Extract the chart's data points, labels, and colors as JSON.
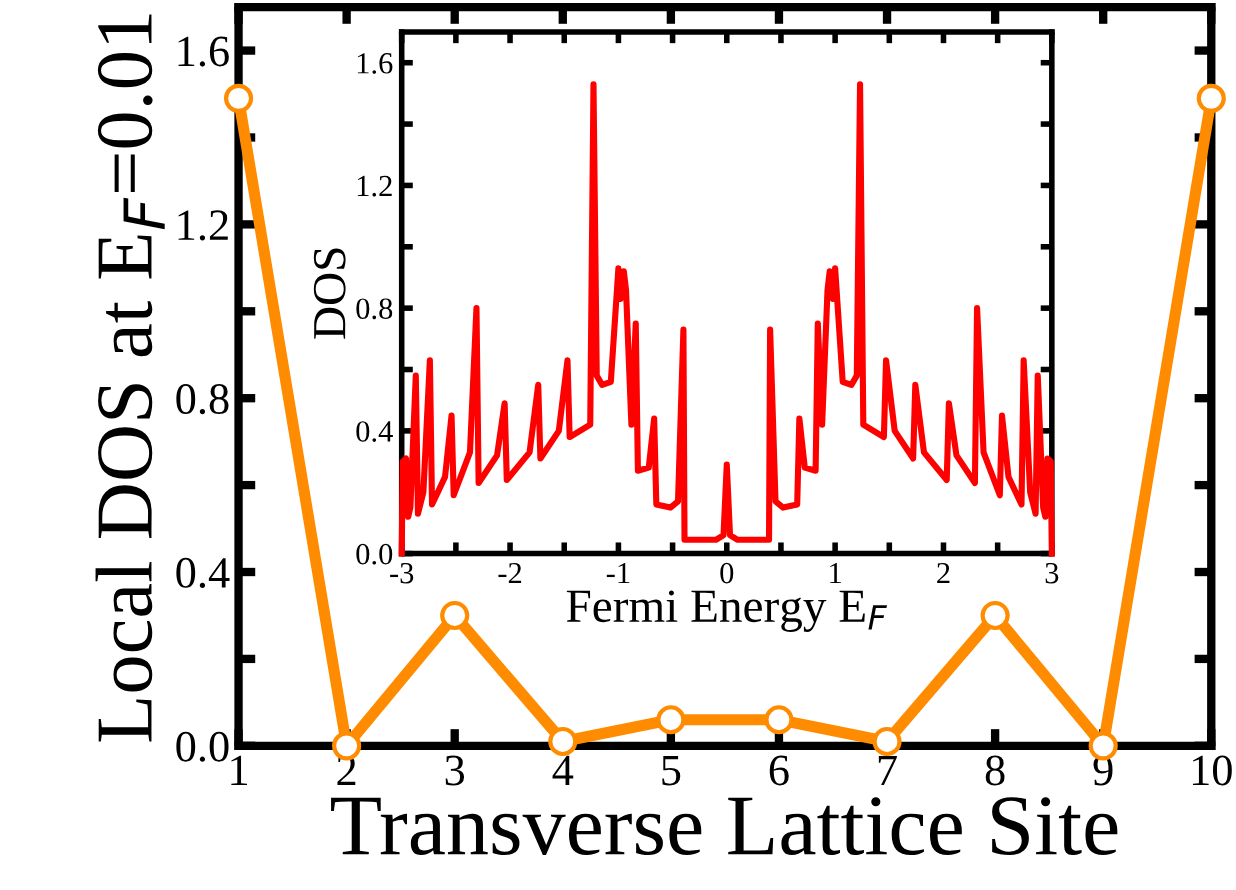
{
  "chart_data": [
    {
      "type": "line",
      "xlabel": "Transverse Lattice Site",
      "ylabel": "Local DOS at E$_{F}$=0.01",
      "x": [
        1,
        2,
        3,
        4,
        5,
        6,
        7,
        8,
        9,
        10
      ],
      "series": [
        {
          "color": "#ff8c00",
          "values": [
            1.49,
            0.0,
            0.3,
            0.01,
            0.06,
            0.06,
            0.01,
            0.3,
            0.0,
            1.49
          ]
        }
      ],
      "xlim": [
        1,
        10
      ],
      "xticks": [
        1,
        2,
        3,
        4,
        5,
        6,
        7,
        8,
        9,
        10
      ],
      "ylim": [
        0,
        1.7
      ],
      "yticks": [
        {
          "value": 0,
          "label": "0.0"
        },
        {
          "value": 0.2,
          "label": null
        },
        {
          "value": 0.4,
          "label": "0.4"
        },
        {
          "value": 0.6,
          "label": null
        },
        {
          "value": 0.8,
          "label": "0.8"
        },
        {
          "value": 1.0,
          "label": null
        },
        {
          "value": 1.2,
          "label": "1.2"
        },
        {
          "value": 1.4,
          "label": null
        },
        {
          "value": 1.6,
          "label": "1.6"
        }
      ],
      "marker": "circle",
      "line_style": "solid",
      "grid": false,
      "legend": false
    },
    {
      "type": "line",
      "xlabel": "Fermi Energy E$_{F}$",
      "ylabel": "DOS",
      "x": [
        -3.0,
        -2.99,
        -2.96,
        -2.94,
        -2.92,
        -2.87,
        -2.85,
        -2.8,
        -2.74,
        -2.72,
        -2.6,
        -2.54,
        -2.52,
        -2.37,
        -2.31,
        -2.29,
        -2.12,
        -2.05,
        -2.03,
        -1.82,
        -1.74,
        -1.72,
        -1.55,
        -1.47,
        -1.45,
        -1.26,
        -1.23,
        -1.2,
        -1.15,
        -1.07,
        -1.0,
        -0.98,
        -0.95,
        -0.93,
        -0.88,
        -0.84,
        -0.82,
        -0.72,
        -0.67,
        -0.65,
        -0.52,
        -0.45,
        -0.4,
        -0.39,
        -0.1,
        -0.03,
        0.0,
        0.03,
        0.1,
        0.39,
        0.4,
        0.45,
        0.52,
        0.65,
        0.67,
        0.72,
        0.82,
        0.84,
        0.88,
        0.93,
        0.95,
        0.98,
        1.0,
        1.07,
        1.15,
        1.2,
        1.23,
        1.26,
        1.45,
        1.47,
        1.55,
        1.72,
        1.74,
        1.82,
        2.03,
        2.05,
        2.12,
        2.29,
        2.31,
        2.37,
        2.52,
        2.54,
        2.6,
        2.72,
        2.74,
        2.8,
        2.85,
        2.87,
        2.92,
        2.94,
        2.96,
        2.99,
        3.0
      ],
      "series": [
        {
          "color": "#ff0000",
          "values": [
            0.0,
            0.3,
            0.31,
            0.12,
            0.15,
            0.58,
            0.13,
            0.2,
            0.63,
            0.16,
            0.25,
            0.45,
            0.19,
            0.33,
            0.8,
            0.23,
            0.32,
            0.49,
            0.24,
            0.33,
            0.55,
            0.31,
            0.4,
            0.63,
            0.38,
            0.42,
            1.53,
            0.58,
            0.55,
            0.56,
            0.93,
            0.83,
            0.92,
            0.86,
            0.42,
            0.75,
            0.27,
            0.28,
            0.44,
            0.16,
            0.15,
            0.17,
            0.73,
            0.045,
            0.045,
            0.06,
            0.29,
            0.06,
            0.045,
            0.045,
            0.73,
            0.17,
            0.15,
            0.16,
            0.44,
            0.28,
            0.27,
            0.75,
            0.42,
            0.86,
            0.92,
            0.83,
            0.93,
            0.56,
            0.55,
            0.58,
            1.53,
            0.42,
            0.38,
            0.63,
            0.4,
            0.31,
            0.55,
            0.33,
            0.24,
            0.49,
            0.32,
            0.23,
            0.8,
            0.33,
            0.19,
            0.45,
            0.25,
            0.16,
            0.63,
            0.2,
            0.13,
            0.58,
            0.15,
            0.12,
            0.31,
            0.3,
            0.0
          ]
        }
      ],
      "xlim": [
        -3,
        3
      ],
      "xticks": [
        -3,
        {
          "value": -2.5,
          "label": null
        },
        -2,
        {
          "value": -1.5,
          "label": null
        },
        -1,
        {
          "value": -0.5,
          "label": null
        },
        0,
        {
          "value": 0.5,
          "label": null
        },
        1,
        {
          "value": 1.5,
          "label": null
        },
        2,
        {
          "value": 2.5,
          "label": null
        },
        3
      ],
      "ylim": [
        0,
        1.7
      ],
      "yticks": [
        {
          "value": 0,
          "label": "0.0"
        },
        {
          "value": 0.2,
          "label": null
        },
        {
          "value": 0.4,
          "label": "0.4"
        },
        {
          "value": 0.6,
          "label": null
        },
        {
          "value": 0.8,
          "label": "0.8"
        },
        {
          "value": 1.0,
          "label": null
        },
        {
          "value": 1.2,
          "label": "1.2"
        },
        {
          "value": 1.4,
          "label": null
        },
        {
          "value": 1.6,
          "label": "1.6"
        }
      ],
      "marker": "none",
      "line_style": "solid",
      "grid": false,
      "legend": false
    }
  ]
}
